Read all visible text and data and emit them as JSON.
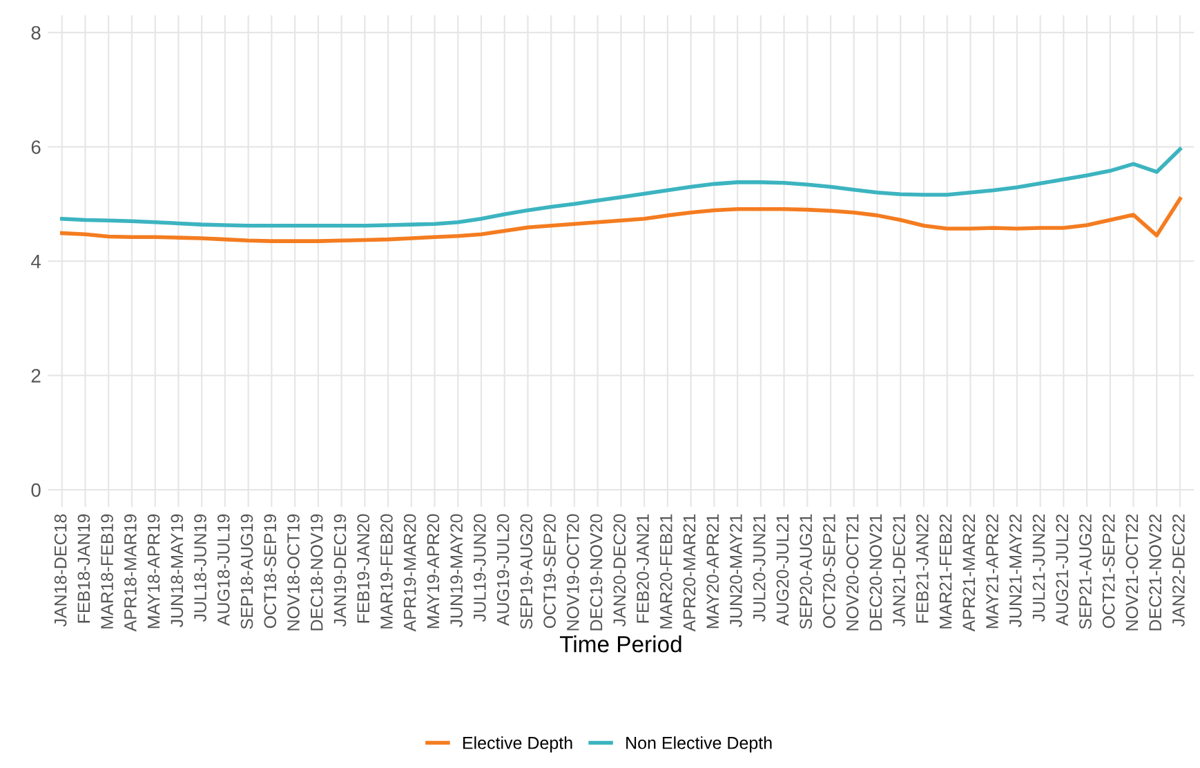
{
  "chart_data": {
    "type": "line",
    "xlabel": "Time Period",
    "categories": [
      "JAN18-DEC18",
      "FEB18-JAN19",
      "MAR18-FEB19",
      "APR18-MAR19",
      "MAY18-APR19",
      "JUN18-MAY19",
      "JUL18-JUN19",
      "AUG18-JUL19",
      "SEP18-AUG19",
      "OCT18-SEP19",
      "NOV18-OCT19",
      "DEC18-NOV19",
      "JAN19-DEC19",
      "FEB19-JAN20",
      "MAR19-FEB20",
      "APR19-MAR20",
      "MAY19-APR20",
      "JUN19-MAY20",
      "JUL19-JUN20",
      "AUG19-JUL20",
      "SEP19-AUG20",
      "OCT19-SEP20",
      "NOV19-OCT20",
      "DEC19-NOV20",
      "JAN20-DEC20",
      "FEB20-JAN21",
      "MAR20-FEB21",
      "APR20-MAR21",
      "MAY20-APR21",
      "JUN20-MAY21",
      "JUL20-JUN21",
      "AUG20-JUL21",
      "SEP20-AUG21",
      "OCT20-SEP21",
      "NOV20-OCT21",
      "DEC20-NOV21",
      "JAN21-DEC21",
      "FEB21-JAN22",
      "MAR21-FEB22",
      "APR21-MAR22",
      "MAY21-APR22",
      "JUN21-MAY22",
      "JUL21-JUN22",
      "AUG21-JUL22",
      "SEP21-AUG22",
      "OCT21-SEP22",
      "NOV21-OCT22",
      "DEC21-NOV22",
      "JAN22-DEC22"
    ],
    "series": [
      {
        "name": "Elective Depth",
        "color": "#f47c20",
        "values": [
          4.49,
          4.47,
          4.43,
          4.42,
          4.42,
          4.41,
          4.4,
          4.38,
          4.36,
          4.35,
          4.35,
          4.35,
          4.36,
          4.37,
          4.38,
          4.4,
          4.42,
          4.44,
          4.47,
          4.53,
          4.59,
          4.62,
          4.65,
          4.68,
          4.71,
          4.74,
          4.8,
          4.85,
          4.89,
          4.91,
          4.91,
          4.91,
          4.9,
          4.88,
          4.85,
          4.8,
          4.72,
          4.62,
          4.57,
          4.57,
          4.58,
          4.57,
          4.58,
          4.58,
          4.63,
          4.72,
          4.81,
          4.45,
          5.09
        ]
      },
      {
        "name": "Non Elective Depth",
        "color": "#3cb4c0",
        "values": [
          4.74,
          4.72,
          4.71,
          4.7,
          4.68,
          4.66,
          4.64,
          4.63,
          4.62,
          4.62,
          4.62,
          4.62,
          4.62,
          4.62,
          4.63,
          4.64,
          4.65,
          4.68,
          4.74,
          4.82,
          4.89,
          4.95,
          5.0,
          5.06,
          5.12,
          5.18,
          5.24,
          5.3,
          5.35,
          5.38,
          5.38,
          5.37,
          5.34,
          5.3,
          5.25,
          5.2,
          5.17,
          5.16,
          5.16,
          5.2,
          5.24,
          5.29,
          5.36,
          5.43,
          5.5,
          5.58,
          5.7,
          5.56,
          5.96
        ]
      }
    ],
    "ylim": [
      -0.3,
      8.3
    ],
    "yticks": [
      0,
      2,
      4,
      6,
      8
    ],
    "grid": true,
    "legend": "bottom",
    "line_style": "solid",
    "marker": "none"
  }
}
